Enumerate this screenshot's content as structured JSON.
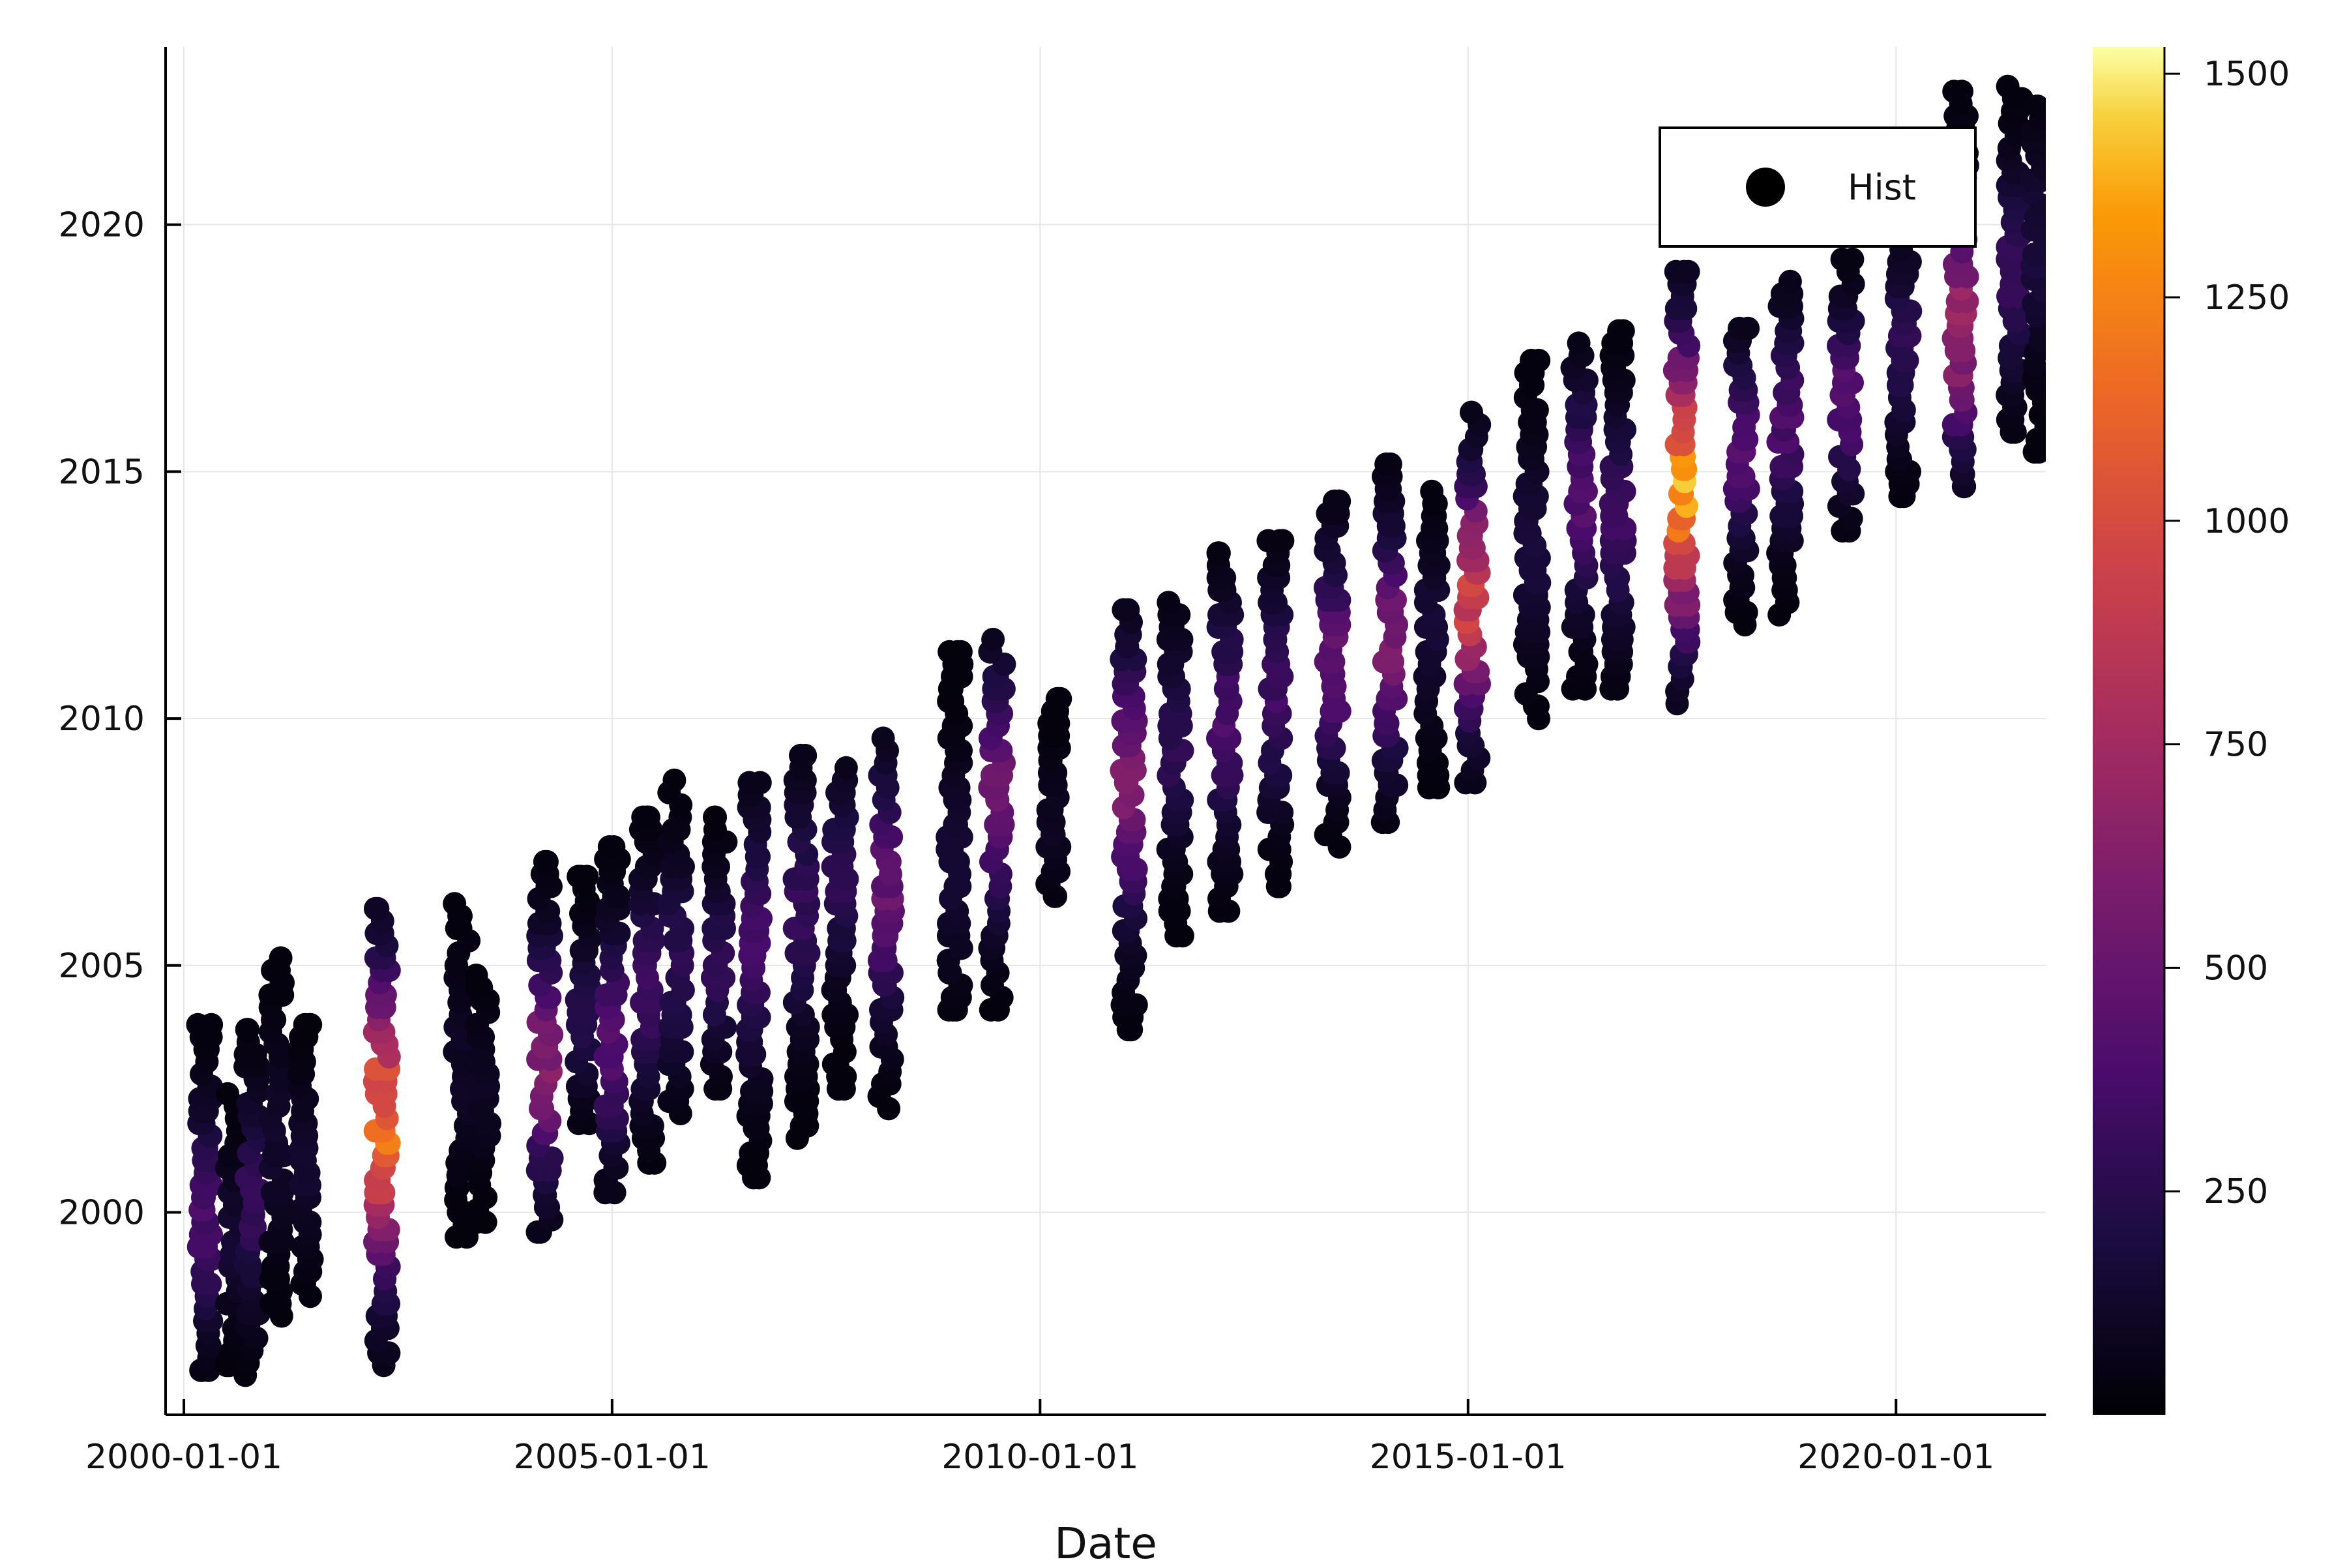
{
  "chart_data": {
    "type": "scatter",
    "title": "",
    "xlabel": "Date",
    "ylabel": "",
    "x_axis_type": "date",
    "xlim": [
      "1999-10-15",
      "2021-10-01"
    ],
    "ylim": [
      1995.9,
      2023.6
    ],
    "x_ticks": [
      "2000-01-01",
      "2005-01-01",
      "2010-01-01",
      "2015-01-01",
      "2020-01-01"
    ],
    "y_ticks": [
      2000,
      2005,
      2010,
      2015,
      2020
    ],
    "grid": true,
    "legend": {
      "position": "top-right",
      "entries": [
        "Hist"
      ]
    },
    "colorbar": {
      "colormap": "inferno",
      "range": [
        0,
        1530
      ],
      "ticks": [
        250,
        500,
        750,
        1000,
        1250,
        1500
      ]
    },
    "series": [
      {
        "name": "Hist",
        "marker": "circle",
        "columns": [
          {
            "date": "2000-04-01",
            "y_min": 1996.8,
            "y_max": 2003.9,
            "peak_count": 420,
            "peak_y": 1999.9
          },
          {
            "date": "2000-08-01",
            "y_min": 1996.9,
            "y_max": 2002.5,
            "peak_count": 160,
            "peak_y": 1999.5
          },
          {
            "date": "2000-10-20",
            "y_min": 1996.7,
            "y_max": 2003.7,
            "peak_count": 320,
            "peak_y": 2000.2
          },
          {
            "date": "2001-02-01",
            "y_min": 1997.9,
            "y_max": 2005.3,
            "peak_count": 140,
            "peak_y": 2001.5
          },
          {
            "date": "2001-06-01",
            "y_min": 1998.3,
            "y_max": 2004.0,
            "peak_count": 150,
            "peak_y": 2001.0
          },
          {
            "date": "2002-04-25",
            "y_min": 1996.9,
            "y_max": 2006.3,
            "peak_count": 1280,
            "peak_y": 2001.8
          },
          {
            "date": "2003-04-01",
            "y_min": 1999.5,
            "y_max": 2006.3,
            "peak_count": 120,
            "peak_y": 2003.0
          },
          {
            "date": "2003-07-01",
            "y_min": 1999.8,
            "y_max": 2005.0,
            "peak_count": 110,
            "peak_y": 2002.5
          },
          {
            "date": "2004-03-20",
            "y_min": 1999.6,
            "y_max": 2007.1,
            "peak_count": 680,
            "peak_y": 2003.0
          },
          {
            "date": "2004-09-01",
            "y_min": 2001.8,
            "y_max": 2006.8,
            "peak_count": 280,
            "peak_y": 2004.0
          },
          {
            "date": "2005-01-01",
            "y_min": 2000.4,
            "y_max": 2007.6,
            "peak_count": 460,
            "peak_y": 2003.5
          },
          {
            "date": "2005-06-01",
            "y_min": 2001.0,
            "y_max": 2008.0,
            "peak_count": 360,
            "peak_y": 2004.5
          },
          {
            "date": "2005-10-01",
            "y_min": 2002.0,
            "y_max": 2008.9,
            "peak_count": 300,
            "peak_y": 2005.0
          },
          {
            "date": "2006-04-01",
            "y_min": 2002.5,
            "y_max": 2008.2,
            "peak_count": 320,
            "peak_y": 2005.0
          },
          {
            "date": "2006-09-01",
            "y_min": 2000.7,
            "y_max": 2008.8,
            "peak_count": 380,
            "peak_y": 2005.5
          },
          {
            "date": "2007-03-20",
            "y_min": 2001.5,
            "y_max": 2009.4,
            "peak_count": 320,
            "peak_y": 2006.2
          },
          {
            "date": "2007-09-01",
            "y_min": 2002.5,
            "y_max": 2009.0,
            "peak_count": 300,
            "peak_y": 2006.8
          },
          {
            "date": "2008-03-15",
            "y_min": 2002.1,
            "y_max": 2009.8,
            "peak_count": 550,
            "peak_y": 2006.5
          },
          {
            "date": "2009-01-01",
            "y_min": 2004.1,
            "y_max": 2011.4,
            "peak_count": 180,
            "peak_y": 2007.0
          },
          {
            "date": "2009-07-01",
            "y_min": 2004.1,
            "y_max": 2011.8,
            "peak_count": 600,
            "peak_y": 2008.5
          },
          {
            "date": "2010-03-01",
            "y_min": 2006.4,
            "y_max": 2010.4,
            "peak_count": 110,
            "peak_y": 2008.0
          },
          {
            "date": "2011-01-15",
            "y_min": 2003.7,
            "y_max": 2012.3,
            "peak_count": 640,
            "peak_y": 2008.7
          },
          {
            "date": "2011-08-01",
            "y_min": 2005.6,
            "y_max": 2012.5,
            "peak_count": 300,
            "peak_y": 2009.5
          },
          {
            "date": "2012-03-01",
            "y_min": 2006.1,
            "y_max": 2013.4,
            "peak_count": 420,
            "peak_y": 2010.0
          },
          {
            "date": "2012-10-01",
            "y_min": 2006.6,
            "y_max": 2013.6,
            "peak_count": 380,
            "peak_y": 2010.5
          },
          {
            "date": "2013-06-01",
            "y_min": 2007.4,
            "y_max": 2014.4,
            "peak_count": 550,
            "peak_y": 2011.2
          },
          {
            "date": "2014-02-01",
            "y_min": 2007.9,
            "y_max": 2015.3,
            "peak_count": 660,
            "peak_y": 2011.5
          },
          {
            "date": "2014-08-01",
            "y_min": 2008.6,
            "y_max": 2014.7,
            "peak_count": 180,
            "peak_y": 2011.8
          },
          {
            "date": "2015-01-20",
            "y_min": 2008.7,
            "y_max": 2016.3,
            "peak_count": 1060,
            "peak_y": 2012.5
          },
          {
            "date": "2015-10-01",
            "y_min": 2010.0,
            "y_max": 2017.3,
            "peak_count": 200,
            "peak_y": 2013.5
          },
          {
            "date": "2016-04-20",
            "y_min": 2010.6,
            "y_max": 2017.7,
            "peak_count": 480,
            "peak_y": 2014.5
          },
          {
            "date": "2016-10-01",
            "y_min": 2010.6,
            "y_max": 2017.9,
            "peak_count": 360,
            "peak_y": 2014.0
          },
          {
            "date": "2017-07-01",
            "y_min": 2010.3,
            "y_max": 2019.2,
            "peak_count": 1530,
            "peak_y": 2014.7
          },
          {
            "date": "2018-03-15",
            "y_min": 2011.9,
            "y_max": 2018.1,
            "peak_count": 480,
            "peak_y": 2015.5
          },
          {
            "date": "2018-09-15",
            "y_min": 2012.1,
            "y_max": 2019.0,
            "peak_count": 420,
            "peak_y": 2016.0
          },
          {
            "date": "2019-06-01",
            "y_min": 2013.8,
            "y_max": 2019.5,
            "peak_count": 500,
            "peak_y": 2016.5
          },
          {
            "date": "2020-02-01",
            "y_min": 2014.5,
            "y_max": 2020.5,
            "peak_count": 300,
            "peak_y": 2017.5
          },
          {
            "date": "2020-10-01",
            "y_min": 2014.7,
            "y_max": 2022.7,
            "peak_count": 820,
            "peak_y": 2018.0
          },
          {
            "date": "2021-05-20",
            "y_min": 2015.8,
            "y_max": 2022.8,
            "peak_count": 350,
            "peak_y": 2019.0
          },
          {
            "date": "2021-09-01",
            "y_min": 2015.4,
            "y_max": 2022.6,
            "peak_count": 200,
            "peak_y": 2019.5
          }
        ]
      }
    ]
  }
}
